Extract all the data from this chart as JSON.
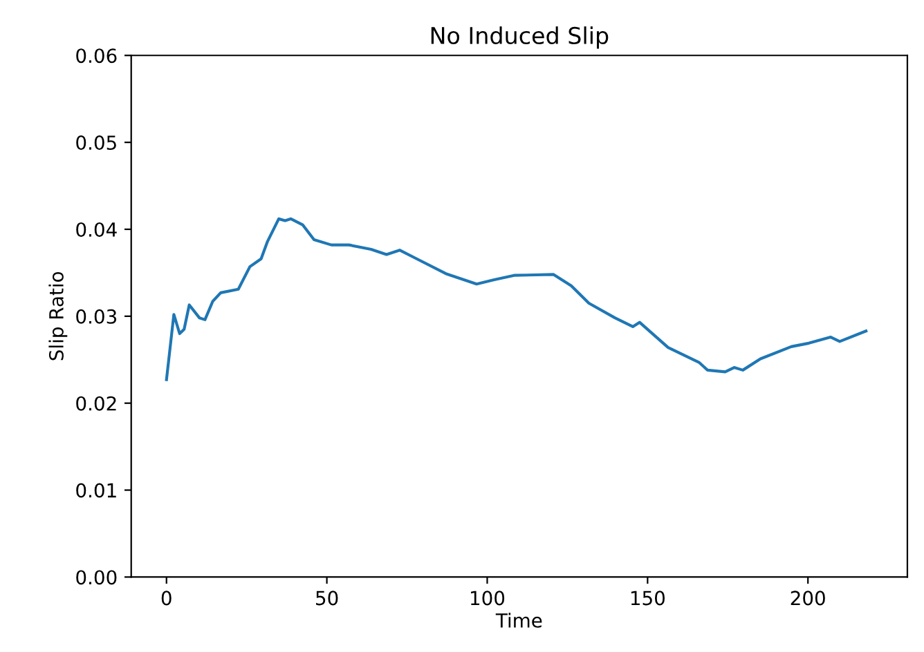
{
  "chart_data": {
    "type": "line",
    "title": "No Induced Slip",
    "xlabel": "Time",
    "ylabel": "Slip Ratio",
    "x": [
      0,
      2.3,
      4.1,
      5.5,
      7.1,
      10.3,
      12,
      14.4,
      16.9,
      22.4,
      26,
      29.5,
      31.5,
      35,
      37,
      38.8,
      42.5,
      46,
      51.4,
      56.9,
      63.8,
      68.6,
      72.7,
      77.5,
      87.1,
      96.7,
      102.2,
      108.4,
      120.7,
      126.2,
      131.7,
      139.9,
      145.4,
      147.5,
      156.4,
      166,
      168.7,
      174.2,
      177,
      179.7,
      185.2,
      194.8,
      200.3,
      207.1,
      209.9,
      218.1
    ],
    "series": [
      {
        "color": "#1f77b4",
        "values": [
          0.0227,
          0.0302,
          0.028,
          0.0285,
          0.0313,
          0.0298,
          0.0296,
          0.0317,
          0.0327,
          0.0331,
          0.0357,
          0.0366,
          0.0386,
          0.0412,
          0.041,
          0.0412,
          0.0405,
          0.0388,
          0.0382,
          0.0382,
          0.0377,
          0.0371,
          0.0376,
          0.0367,
          0.0349,
          0.0337,
          0.0342,
          0.0347,
          0.0348,
          0.0335,
          0.0315,
          0.0298,
          0.0288,
          0.0293,
          0.0264,
          0.0247,
          0.0238,
          0.0236,
          0.0241,
          0.0238,
          0.0251,
          0.0265,
          0.0269,
          0.0276,
          0.0271,
          0.0283
        ]
      }
    ],
    "xlim": [
      -11,
      231
    ],
    "xticks": [
      0,
      50,
      100,
      150,
      200
    ],
    "ylim": [
      0,
      0.06
    ],
    "yticks": [
      {
        "value": 0,
        "label": "0.00"
      },
      {
        "value": 0.01,
        "label": "0.01"
      },
      {
        "value": 0.02,
        "label": "0.02"
      },
      {
        "value": 0.03,
        "label": "0.03"
      },
      {
        "value": 0.04,
        "label": "0.04"
      },
      {
        "value": 0.05,
        "label": "0.05"
      },
      {
        "value": 0.06,
        "label": "0.06"
      }
    ]
  }
}
